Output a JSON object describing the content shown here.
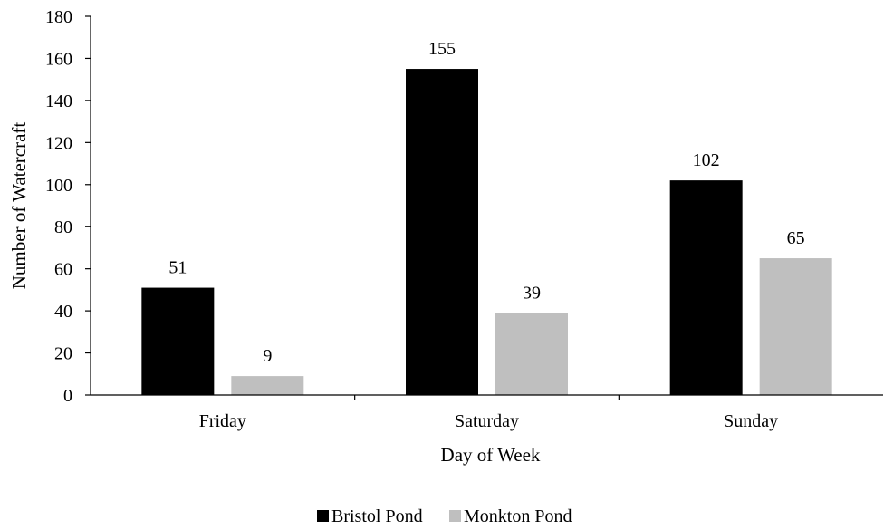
{
  "chart_data": {
    "type": "bar",
    "title": "",
    "xlabel": "Day of Week",
    "ylabel": "Number of Watercraft",
    "categories": [
      "Friday",
      "Saturday",
      "Sunday"
    ],
    "series": [
      {
        "name": "Bristol Pond",
        "values": [
          51,
          155,
          102
        ],
        "color": "#000000"
      },
      {
        "name": "Monkton Pond",
        "values": [
          9,
          39,
          65
        ],
        "color": "#bfbfbf"
      }
    ],
    "ylim": [
      0,
      180
    ],
    "yticks": [
      0,
      20,
      40,
      60,
      80,
      100,
      120,
      140,
      160,
      180
    ],
    "grid": false,
    "legend_position": "bottom"
  }
}
